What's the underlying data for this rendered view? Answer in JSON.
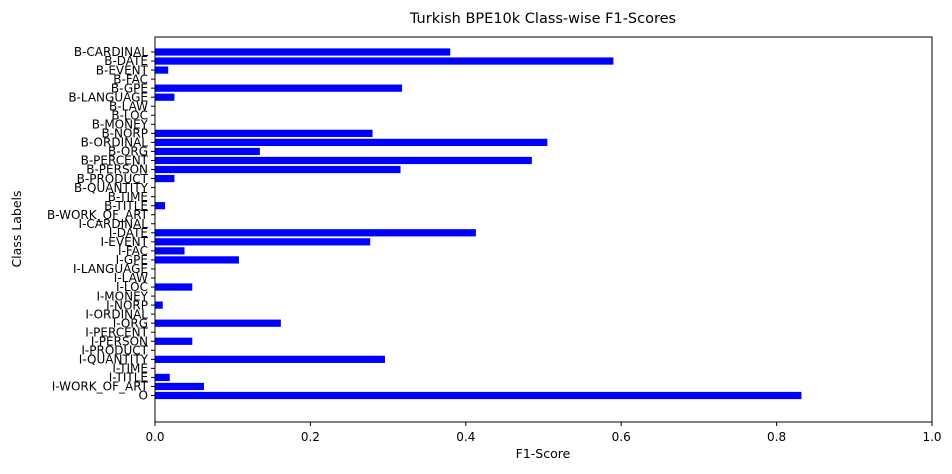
{
  "chart_data": {
    "type": "bar",
    "orientation": "horizontal",
    "title": "Turkish BPE10k Class-wise F1-Scores",
    "xlabel": "F1-Score",
    "ylabel": "Class Labels",
    "xlim": [
      0,
      1.0
    ],
    "xticks": [
      "0.0",
      "0.2",
      "0.4",
      "0.6",
      "0.8",
      "1.0"
    ],
    "grid": false,
    "bar_color": "#0000ff",
    "categories": [
      "B-CARDINAL",
      "B-DATE",
      "B-EVENT",
      "B-FAC",
      "B-GPE",
      "B-LANGUAGE",
      "B-LAW",
      "B-LOC",
      "B-MONEY",
      "B-NORP",
      "B-ORDINAL",
      "B-ORG",
      "B-PERCENT",
      "B-PERSON",
      "B-PRODUCT",
      "B-QUANTITY",
      "B-TIME",
      "B-TITLE",
      "B-WORK_OF_ART",
      "I-CARDINAL",
      "I-DATE",
      "I-EVENT",
      "I-FAC",
      "I-GPE",
      "I-LANGUAGE",
      "I-LAW",
      "I-LOC",
      "I-MONEY",
      "I-NORP",
      "I-ORDINAL",
      "I-ORG",
      "I-PERCENT",
      "I-PERSON",
      "I-PRODUCT",
      "I-QUANTITY",
      "I-TIME",
      "I-TITLE",
      "I-WORK_OF_ART",
      "O"
    ],
    "values": [
      0.38,
      0.59,
      0.017,
      0.0,
      0.318,
      0.025,
      0.0,
      0.0,
      0.0,
      0.28,
      0.505,
      0.135,
      0.485,
      0.316,
      0.025,
      0.0,
      0.0,
      0.013,
      0.0,
      0.0,
      0.413,
      0.277,
      0.038,
      0.108,
      0.0,
      0.0,
      0.048,
      0.0,
      0.01,
      0.0,
      0.162,
      0.0,
      0.048,
      0.0,
      0.296,
      0.0,
      0.019,
      0.063,
      0.832
    ]
  }
}
